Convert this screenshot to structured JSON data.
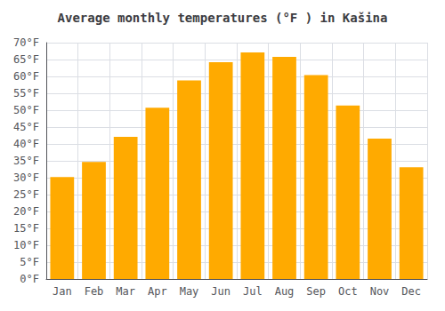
{
  "chart_data": {
    "type": "bar",
    "title": "Average monthly temperatures (°F ) in Kašina",
    "categories": [
      "Jan",
      "Feb",
      "Mar",
      "Apr",
      "May",
      "Jun",
      "Jul",
      "Aug",
      "Sep",
      "Oct",
      "Nov",
      "Dec"
    ],
    "values": [
      30.2,
      34.7,
      42.1,
      50.7,
      58.8,
      64.2,
      67.1,
      65.8,
      60.4,
      51.4,
      41.6,
      33.1
    ],
    "color": "#FFAA00",
    "ylim": [
      0,
      70
    ],
    "yticks": [
      {
        "value": 0,
        "label": "0°F"
      },
      {
        "value": 5,
        "label": "5°F"
      },
      {
        "value": 10,
        "label": "10°F"
      },
      {
        "value": 15,
        "label": "15°F"
      },
      {
        "value": 20,
        "label": "20°F"
      },
      {
        "value": 25,
        "label": "25°F"
      },
      {
        "value": 30,
        "label": "30°F"
      },
      {
        "value": 35,
        "label": "35°F"
      },
      {
        "value": 40,
        "label": "40°F"
      },
      {
        "value": 45,
        "label": "45°F"
      },
      {
        "value": 50,
        "label": "50°F"
      },
      {
        "value": 55,
        "label": "55°F"
      },
      {
        "value": 60,
        "label": "60°F"
      },
      {
        "value": 65,
        "label": "65°F"
      },
      {
        "value": 70,
        "label": "70°F"
      }
    ],
    "grid": true
  }
}
